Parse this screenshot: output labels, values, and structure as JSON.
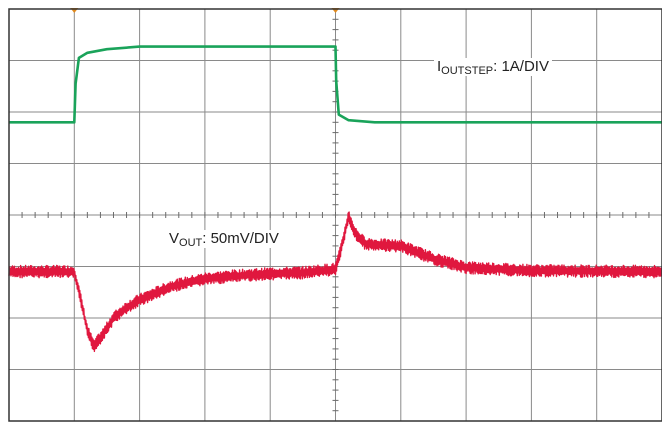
{
  "chart_data": {
    "type": "line",
    "title": "",
    "xlabel": "",
    "ylabel": "",
    "grid": true,
    "grid_divisions": {
      "x": 10,
      "y": 8
    },
    "xlim": [
      0,
      10
    ],
    "trigger_markers": [
      {
        "x": 1.0,
        "color": "#e08a1e"
      },
      {
        "x": 5.0,
        "color": "#e08a1e"
      }
    ],
    "series": [
      {
        "name": "IOUTSTEP",
        "label_main": "I",
        "label_sub": "OUTSTEP",
        "label_rest": ": 1A/DIV",
        "color": "#1aa35a",
        "unit_per_div": "1A/DIV",
        "x": [
          0,
          1.0,
          1.02,
          1.07,
          1.2,
          1.5,
          2.0,
          3.0,
          4.0,
          5.0,
          5.01,
          5.05,
          5.2,
          5.6,
          6.0,
          10.0
        ],
        "y": [
          5.8,
          5.8,
          6.55,
          7.05,
          7.15,
          7.22,
          7.27,
          7.27,
          7.27,
          7.27,
          6.6,
          5.95,
          5.84,
          5.8,
          5.8,
          5.8
        ]
      },
      {
        "name": "VOUT",
        "label_main": "V",
        "label_sub": "OUT",
        "label_rest": ": 50mV/DIV",
        "color": "#e0173e",
        "unit_per_div": "50mV/DIV",
        "noise_amplitude": 0.12,
        "x": [
          0,
          1.0,
          1.1,
          1.2,
          1.3,
          1.45,
          1.6,
          1.8,
          2.0,
          2.5,
          3.0,
          3.5,
          4.0,
          4.5,
          5.0,
          5.08,
          5.2,
          5.3,
          5.45,
          5.6,
          6.0,
          6.5,
          7.0,
          8.0,
          10.0
        ],
        "y": [
          2.9,
          2.9,
          2.35,
          1.75,
          1.45,
          1.7,
          2.0,
          2.2,
          2.35,
          2.62,
          2.76,
          2.82,
          2.86,
          2.88,
          2.95,
          3.3,
          3.98,
          3.65,
          3.45,
          3.42,
          3.4,
          3.15,
          2.98,
          2.92,
          2.9
        ]
      }
    ]
  }
}
